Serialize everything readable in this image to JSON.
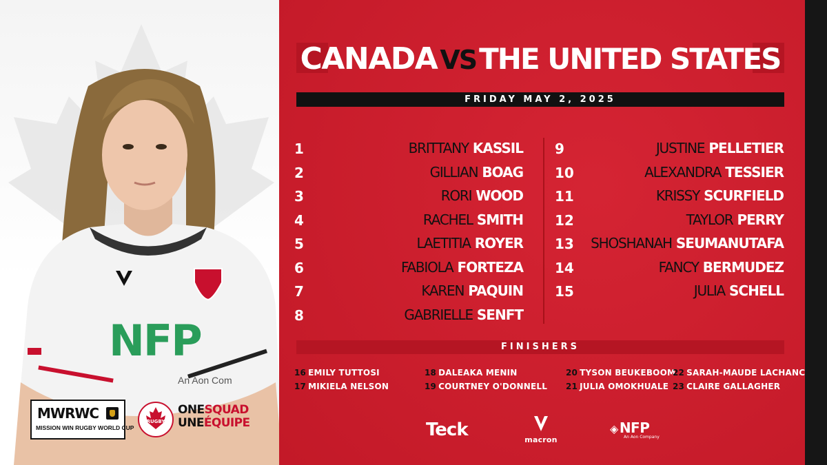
{
  "match": {
    "home": "CANADA",
    "vs": "VS",
    "away": "THE UNITED STATES",
    "date": "FRIDAY MAY 2, 2025"
  },
  "starters_left": [
    {
      "num": "1",
      "first": "BRITTANY",
      "last": "KASSIL"
    },
    {
      "num": "2",
      "first": "GILLIAN",
      "last": "BOAG"
    },
    {
      "num": "3",
      "first": "RORI",
      "last": "WOOD"
    },
    {
      "num": "4",
      "first": "RACHEL",
      "last": "SMITH"
    },
    {
      "num": "5",
      "first": "LAETITIA",
      "last": "ROYER"
    },
    {
      "num": "6",
      "first": "FABIOLA",
      "last": "FORTEZA"
    },
    {
      "num": "7",
      "first": "KAREN",
      "last": "PAQUIN"
    },
    {
      "num": "8",
      "first": "GABRIELLE",
      "last": "SENFT"
    }
  ],
  "starters_right": [
    {
      "num": "9",
      "first": "JUSTINE",
      "last": "PELLETIER"
    },
    {
      "num": "10",
      "first": "ALEXANDRA",
      "last": "TESSIER"
    },
    {
      "num": "11",
      "first": "KRISSY",
      "last": "SCURFIELD"
    },
    {
      "num": "12",
      "first": "TAYLOR",
      "last": "PERRY"
    },
    {
      "num": "13",
      "first": "SHOSHANAH",
      "last": "SEUMANUTAFA"
    },
    {
      "num": "14",
      "first": "FANCY",
      "last": "BERMUDEZ"
    },
    {
      "num": "15",
      "first": "JULIA",
      "last": "SCHELL"
    }
  ],
  "finishers_label": "FINISHERS",
  "finishers": [
    [
      {
        "num": "16",
        "name": "EMILY TUTTOSI"
      },
      {
        "num": "17",
        "name": "MIKIELA NELSON"
      }
    ],
    [
      {
        "num": "18",
        "name": "DALEAKA MENIN"
      },
      {
        "num": "19",
        "name": "COURTNEY O'DONNELL"
      }
    ],
    [
      {
        "num": "20",
        "name": "TYSON BEUKEBOOM"
      },
      {
        "num": "21",
        "name": "JULIA OMOKHUALE"
      }
    ],
    [
      {
        "num": "22",
        "name": "SARAH-MAUDE LACHANCE"
      },
      {
        "num": "23",
        "name": "CLAIRE GALLAGHER"
      }
    ]
  ],
  "sponsors": {
    "teck": "Teck",
    "macron": "macron",
    "nfp": "NFP",
    "nfp_sub": "An Aon Company"
  },
  "branding": {
    "mwrwc": "MWRWC",
    "mwrwc_sub": "MISSION WIN RUGBY WORLD CUP",
    "squad_line1_a": "ONE",
    "squad_line1_b": "SQUAD",
    "squad_line2_a": "UNE",
    "squad_line2_b": "ÉQUIPE",
    "rugby_badge_text": "RUGBY",
    "jersey_sponsor": "NFP",
    "jersey_sponsor_sub": "An Aon Com"
  },
  "colors": {
    "red": "#d31b2b",
    "dark_red": "#b51523",
    "black": "#111111",
    "white": "#ffffff"
  }
}
